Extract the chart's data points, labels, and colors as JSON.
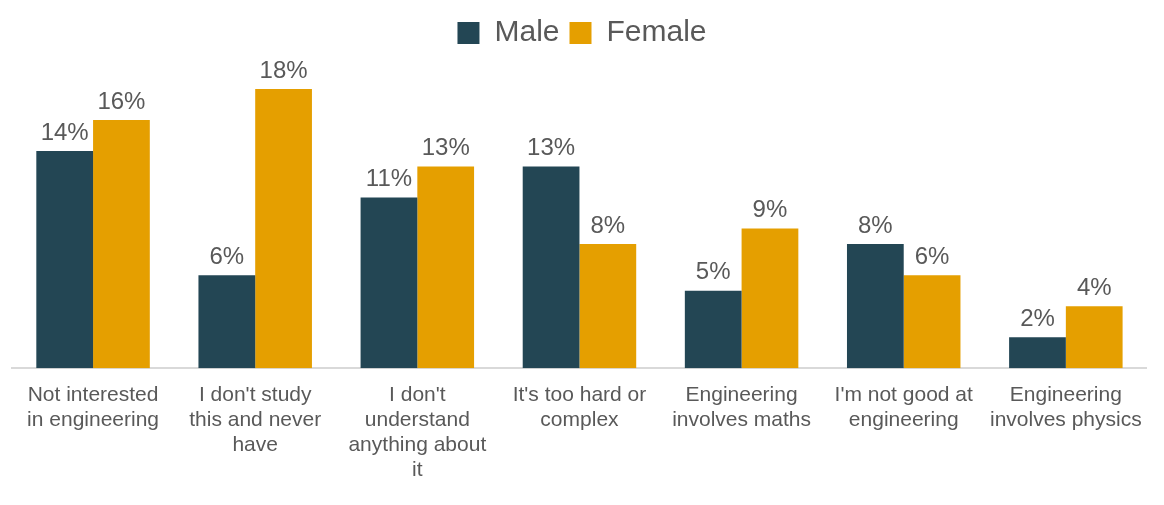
{
  "chart_data": {
    "type": "bar",
    "categories": [
      "Not interested in engineering",
      "I don't study this and never have",
      "I don't understand anything about it",
      "It's too hard or complex",
      "Engineering involves maths",
      "I'm not good at engineering",
      "Engineering involves physics"
    ],
    "series": [
      {
        "name": "Male",
        "color": "#234654",
        "values": [
          14,
          6,
          11,
          13,
          5,
          8,
          2
        ],
        "value_labels": [
          "14%",
          "6%",
          "11%",
          "13%",
          "5%",
          "8%",
          "2%"
        ]
      },
      {
        "name": "Female",
        "color": "#e59f00",
        "values": [
          16,
          18,
          13,
          8,
          9,
          6,
          4
        ],
        "value_labels": [
          "16%",
          "18%",
          "13%",
          "8%",
          "9%",
          "6%",
          "4%"
        ]
      }
    ],
    "legend": "top",
    "grid": false
  }
}
